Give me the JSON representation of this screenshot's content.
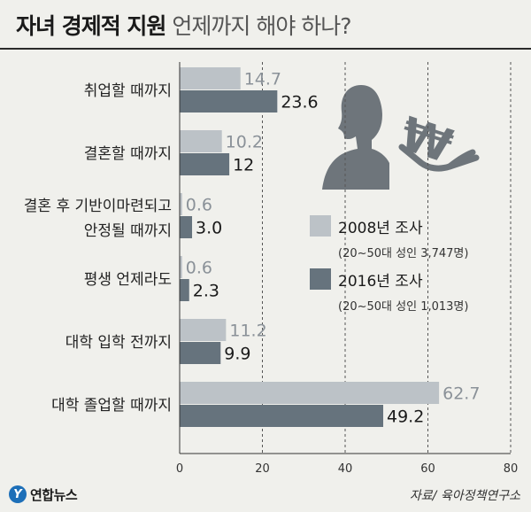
{
  "header": {
    "title_bold": "자녀 경제적 지원",
    "title_light": "언제까지 해야 하나?"
  },
  "chart_data": {
    "type": "bar",
    "orientation": "horizontal",
    "categories": [
      [
        "취업할 때까지"
      ],
      [
        "결혼할 때까지"
      ],
      [
        "결혼 후 기반이마련되고",
        "안정될 때까지"
      ],
      [
        "평생 언제라도"
      ],
      [
        "대학 입학 전까지"
      ],
      [
        "대학 졸업할 때까지"
      ]
    ],
    "series": [
      {
        "name": "2008년 조사",
        "note": "(20~50대 성인 3,747명)",
        "color": "#bcc2c7",
        "values": [
          14.7,
          10.2,
          0.6,
          0.6,
          11.2,
          62.7
        ],
        "labels": [
          "14.7",
          "10.2",
          "0.6",
          "0.6",
          "11.2",
          "62.7"
        ]
      },
      {
        "name": "2016년 조사",
        "note": "(20~50대 성인 1,013명)",
        "color": "#66737d",
        "values": [
          23.6,
          12,
          3.0,
          2.3,
          9.9,
          49.2
        ],
        "labels": [
          "23.6",
          "12",
          "3.0",
          "2.3",
          "9.9",
          "49.2"
        ]
      }
    ],
    "xlim": [
      0,
      80
    ],
    "xticks": [
      0,
      20,
      40,
      60,
      80
    ],
    "grid": "vertical dashed",
    "legend_position": "right-middle"
  },
  "legend": [
    {
      "title": "2008년 조사",
      "sub": "(20~50대 성인 3,747명)",
      "color": "#bcc2c7"
    },
    {
      "title": "2016년 조사",
      "sub": "(20~50대 성인 1,013명)",
      "color": "#66737d"
    }
  ],
  "illustration": {
    "currency_symbol": "₩"
  },
  "footer": {
    "logo_text": "연합뉴스",
    "source": "자료/ 육아정책연구소"
  }
}
